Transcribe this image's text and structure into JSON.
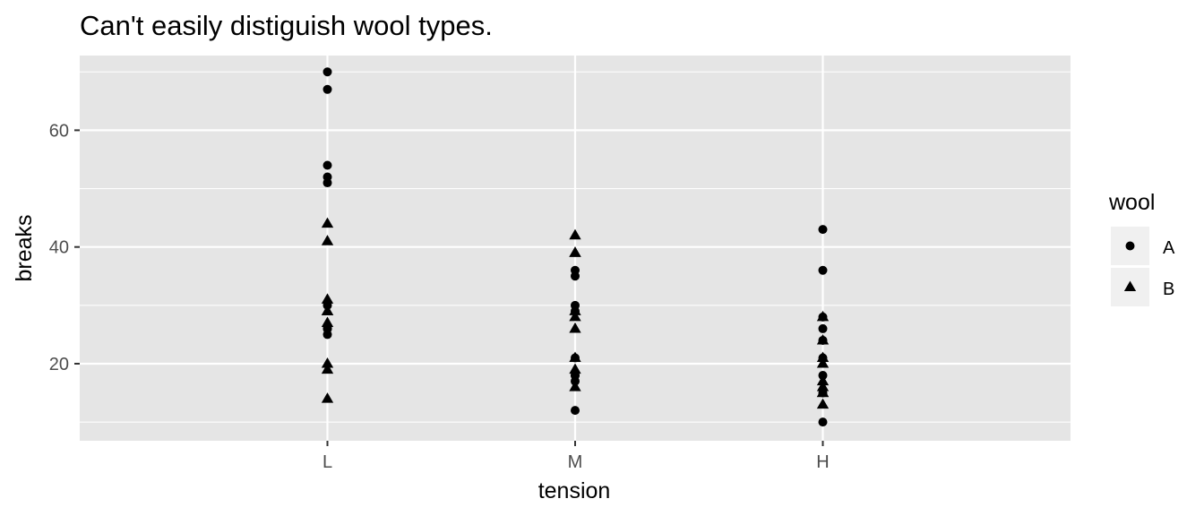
{
  "chart_data": {
    "type": "scatter",
    "title": "Can't easily distiguish wool types.",
    "xlabel": "tension",
    "ylabel": "breaks",
    "categories": [
      "L",
      "M",
      "H"
    ],
    "ylim": [
      6.8,
      72.8
    ],
    "y_ticks": [
      20,
      40,
      60
    ],
    "grid": true,
    "legend": {
      "title": "wool",
      "position": "right"
    },
    "series": [
      {
        "name": "A",
        "marker": "circle",
        "points": [
          {
            "x": "L",
            "y": 26
          },
          {
            "x": "L",
            "y": 30
          },
          {
            "x": "L",
            "y": 54
          },
          {
            "x": "L",
            "y": 25
          },
          {
            "x": "L",
            "y": 70
          },
          {
            "x": "L",
            "y": 52
          },
          {
            "x": "L",
            "y": 51
          },
          {
            "x": "L",
            "y": 26
          },
          {
            "x": "L",
            "y": 67
          },
          {
            "x": "M",
            "y": 18
          },
          {
            "x": "M",
            "y": 21
          },
          {
            "x": "M",
            "y": 29
          },
          {
            "x": "M",
            "y": 17
          },
          {
            "x": "M",
            "y": 12
          },
          {
            "x": "M",
            "y": 18
          },
          {
            "x": "M",
            "y": 35
          },
          {
            "x": "M",
            "y": 30
          },
          {
            "x": "M",
            "y": 36
          },
          {
            "x": "H",
            "y": 36
          },
          {
            "x": "H",
            "y": 21
          },
          {
            "x": "H",
            "y": 24
          },
          {
            "x": "H",
            "y": 18
          },
          {
            "x": "H",
            "y": 10
          },
          {
            "x": "H",
            "y": 43
          },
          {
            "x": "H",
            "y": 28
          },
          {
            "x": "H",
            "y": 15
          },
          {
            "x": "H",
            "y": 26
          }
        ]
      },
      {
        "name": "B",
        "marker": "triangle",
        "points": [
          {
            "x": "L",
            "y": 27
          },
          {
            "x": "L",
            "y": 14
          },
          {
            "x": "L",
            "y": 29
          },
          {
            "x": "L",
            "y": 19
          },
          {
            "x": "L",
            "y": 29
          },
          {
            "x": "L",
            "y": 31
          },
          {
            "x": "L",
            "y": 41
          },
          {
            "x": "L",
            "y": 20
          },
          {
            "x": "L",
            "y": 44
          },
          {
            "x": "M",
            "y": 42
          },
          {
            "x": "M",
            "y": 26
          },
          {
            "x": "M",
            "y": 19
          },
          {
            "x": "M",
            "y": 16
          },
          {
            "x": "M",
            "y": 39
          },
          {
            "x": "M",
            "y": 28
          },
          {
            "x": "M",
            "y": 21
          },
          {
            "x": "M",
            "y": 39
          },
          {
            "x": "M",
            "y": 29
          },
          {
            "x": "H",
            "y": 20
          },
          {
            "x": "H",
            "y": 21
          },
          {
            "x": "H",
            "y": 24
          },
          {
            "x": "H",
            "y": 17
          },
          {
            "x": "H",
            "y": 13
          },
          {
            "x": "H",
            "y": 15
          },
          {
            "x": "H",
            "y": 15
          },
          {
            "x": "H",
            "y": 16
          },
          {
            "x": "H",
            "y": 28
          }
        ]
      }
    ]
  },
  "colors": {
    "panel_background": "#e5e5e5",
    "grid_line": "#ffffff",
    "point": "#000000",
    "axis_text": "#4d4d4d",
    "legend_key_background": "#f0f0f0"
  }
}
